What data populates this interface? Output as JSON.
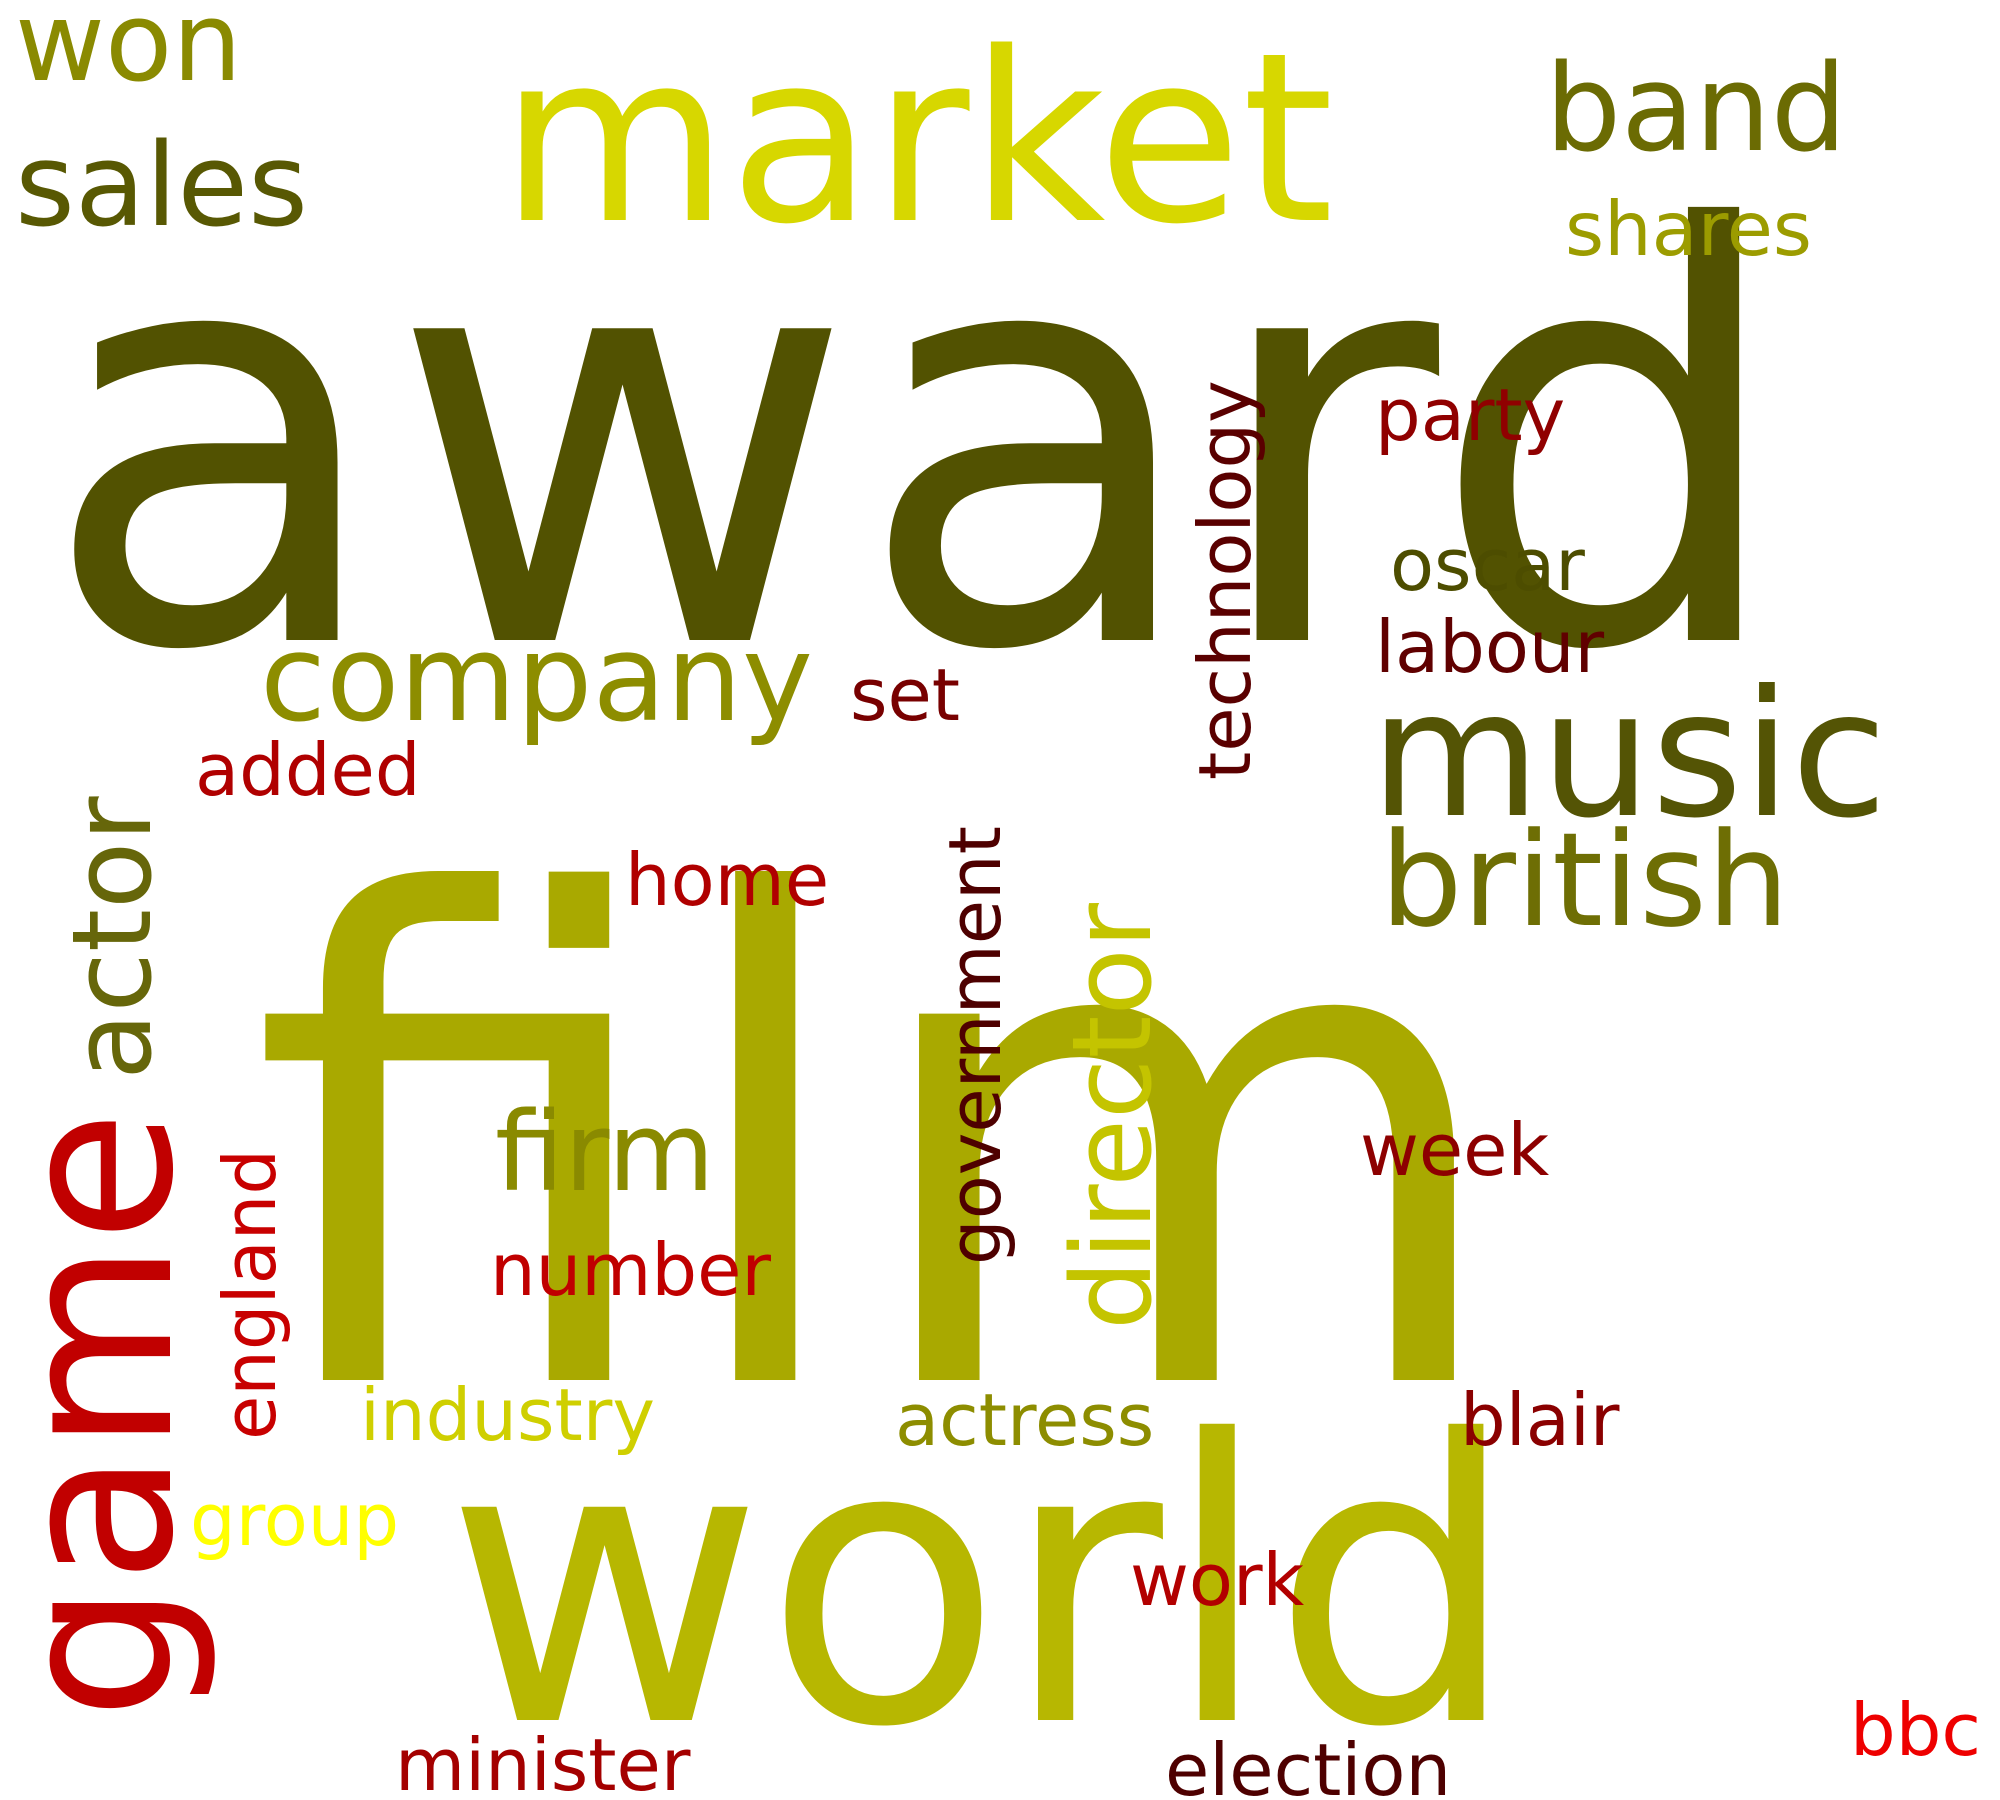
{
  "words": [
    {
      "text": "award",
      "color": "#525201"
    },
    {
      "text": "film",
      "color": "#a9a900"
    },
    {
      "text": "world",
      "color": "#b7b701"
    },
    {
      "text": "market",
      "color": "#d7d700"
    },
    {
      "text": "game",
      "color": "#c10000"
    },
    {
      "text": "music",
      "color": "#545405"
    },
    {
      "text": "company",
      "color": "#8d8d00"
    },
    {
      "text": "british",
      "color": "#6e6e04"
    },
    {
      "text": "band",
      "color": "#6b6b03"
    },
    {
      "text": "sales",
      "color": "#585803"
    },
    {
      "text": "won",
      "color": "#8a8a01"
    },
    {
      "text": "actor",
      "color": "#66660a"
    },
    {
      "text": "director",
      "color": "#c4c400"
    },
    {
      "text": "firm",
      "color": "#8a8a00"
    },
    {
      "text": "shares",
      "color": "#9c9c00"
    },
    {
      "text": "technology",
      "color": "#5a0000"
    },
    {
      "text": "government",
      "color": "#4e0000"
    },
    {
      "text": "party",
      "color": "#900000"
    },
    {
      "text": "oscar",
      "color": "#4d4d00"
    },
    {
      "text": "labour",
      "color": "#600000"
    },
    {
      "text": "set",
      "color": "#780000"
    },
    {
      "text": "added",
      "color": "#b00000"
    },
    {
      "text": "home",
      "color": "#b00000"
    },
    {
      "text": "england",
      "color": "#c80000"
    },
    {
      "text": "week",
      "color": "#8d0000"
    },
    {
      "text": "number",
      "color": "#c00000"
    },
    {
      "text": "industry",
      "color": "#cfcf00"
    },
    {
      "text": "actress",
      "color": "#8d8d00"
    },
    {
      "text": "blair",
      "color": "#8a0000"
    },
    {
      "text": "group",
      "color": "#ffff00"
    },
    {
      "text": "work",
      "color": "#b20000"
    },
    {
      "text": "minister",
      "color": "#a40000"
    },
    {
      "text": "election",
      "color": "#4e0000"
    },
    {
      "text": "bbc",
      "color": "#ee0000"
    }
  ]
}
